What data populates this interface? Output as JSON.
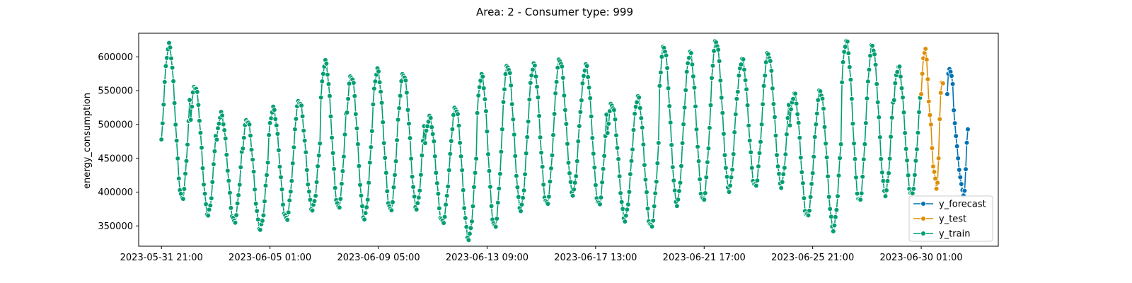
{
  "chart_data": {
    "type": "line",
    "title": "Area: 2 - Consumer type: 999",
    "xlabel": "",
    "ylabel": "energy_consumption",
    "x_start": "2023-05-31 21:00",
    "x_step": "1 hour",
    "xlim": [
      "2023-05-31 00:00",
      "2023-07-03 00:00"
    ],
    "ylim": [
      320000,
      635000
    ],
    "x_ticks": [
      "2023-05-31 21:00",
      "2023-06-05 01:00",
      "2023-06-09 05:00",
      "2023-06-13 09:00",
      "2023-06-17 13:00",
      "2023-06-21 17:00",
      "2023-06-25 21:00",
      "2023-06-30 01:00"
    ],
    "y_ticks": [
      "350000",
      "400000",
      "450000",
      "500000",
      "550000",
      "600000"
    ],
    "y_tick_values": [
      350000,
      400000,
      450000,
      500000,
      550000,
      600000
    ],
    "grid": false,
    "legend_position": "lower-right",
    "daily_cycles": [
      {
        "date": "2023-06-01",
        "min": 390000,
        "max": 617000
      },
      {
        "date": "2023-06-02",
        "min": 367000,
        "max": 557000
      },
      {
        "date": "2023-06-03",
        "min": 356000,
        "max": 515000
      },
      {
        "date": "2023-06-04",
        "min": 346000,
        "max": 507000
      },
      {
        "date": "2023-06-05",
        "min": 360000,
        "max": 523000
      },
      {
        "date": "2023-06-06",
        "min": 375000,
        "max": 535000
      },
      {
        "date": "2023-06-07",
        "min": 377000,
        "max": 592000
      },
      {
        "date": "2023-06-08",
        "min": 362000,
        "max": 572000
      },
      {
        "date": "2023-06-09",
        "min": 373000,
        "max": 580000
      },
      {
        "date": "2023-06-10",
        "min": 377000,
        "max": 575000
      },
      {
        "date": "2023-06-11",
        "min": 355000,
        "max": 510000
      },
      {
        "date": "2023-06-12",
        "min": 332000,
        "max": 525000
      },
      {
        "date": "2023-06-13",
        "min": 348000,
        "max": 572000
      },
      {
        "date": "2023-06-14",
        "min": 375000,
        "max": 587000
      },
      {
        "date": "2023-06-15",
        "min": 382000,
        "max": 588000
      },
      {
        "date": "2023-06-16",
        "min": 398000,
        "max": 596000
      },
      {
        "date": "2023-06-17",
        "min": 381000,
        "max": 587000
      },
      {
        "date": "2023-06-18",
        "min": 360000,
        "max": 530000
      },
      {
        "date": "2023-06-19",
        "min": 348000,
        "max": 540000
      },
      {
        "date": "2023-06-20",
        "min": 383000,
        "max": 615000
      },
      {
        "date": "2023-06-21",
        "min": 387000,
        "max": 606000
      },
      {
        "date": "2023-06-22",
        "min": 404000,
        "max": 623000
      },
      {
        "date": "2023-06-23",
        "min": 408000,
        "max": 596000
      },
      {
        "date": "2023-06-24",
        "min": 410000,
        "max": 605000
      },
      {
        "date": "2023-06-25",
        "min": 364000,
        "max": 545000
      },
      {
        "date": "2023-06-26",
        "min": 346000,
        "max": 550000
      },
      {
        "date": "2023-06-27",
        "min": 386000,
        "max": 623000
      },
      {
        "date": "2023-06-28",
        "min": 398000,
        "max": 617000
      },
      {
        "date": "2023-06-29",
        "min": 396000,
        "max": 585000
      }
    ],
    "series": [
      {
        "name": "y_forecast",
        "color": "#0173b2",
        "x_start": "2023-07-01 01:00",
        "values": [
          545000,
          575000,
          582000,
          578000,
          572000,
          560000,
          521000,
          502000,
          483000,
          468000,
          450000,
          433000,
          422000,
          412000,
          403000,
          395000,
          402000,
          434000,
          473000,
          493000
        ]
      },
      {
        "name": "y_test",
        "color": "#de8f05",
        "x_start": "2023-06-30 01:00",
        "values": [
          545000,
          575000,
          598000,
          606000,
          612000,
          596000,
          567000,
          534000,
          514000,
          500000,
          465000,
          438000,
          430000,
          420000,
          405000,
          414000,
          450000,
          508000,
          547000,
          562000,
          561000
        ]
      },
      {
        "name": "y_train",
        "color": "#029e73",
        "x_start": "2023-05-31 21:00",
        "x_end": "2023-06-30 00:00"
      }
    ]
  }
}
